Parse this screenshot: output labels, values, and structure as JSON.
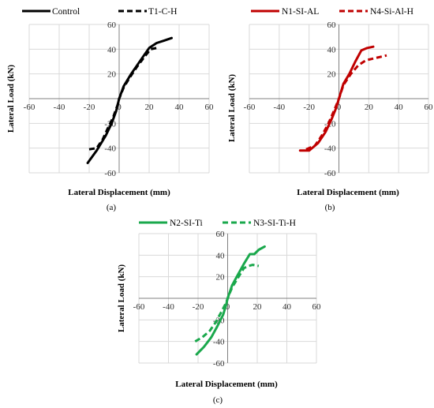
{
  "chart_data": [
    {
      "type": "line",
      "caption": "(a)",
      "xlabel": "Lateral Displacement (mm)",
      "ylabel": "Lateral Load (kN)",
      "xlim": [
        -60,
        60
      ],
      "ylim": [
        -60,
        60
      ],
      "xticks": [
        -60,
        -40,
        -20,
        0,
        20,
        40,
        60
      ],
      "yticks": [
        -60,
        -40,
        -20,
        0,
        20,
        40,
        60
      ],
      "ytick_labels": [
        "-60",
        "-40",
        "-20",
        "",
        "20",
        "40",
        "60"
      ],
      "grid": true,
      "legend_position": "top",
      "series": [
        {
          "name": "Control",
          "style": "solid",
          "color": "#000000",
          "x": [
            -21,
            -15,
            -9,
            -5,
            -2,
            0,
            3,
            8,
            12,
            16,
            20,
            25,
            30,
            35
          ],
          "y": [
            -52,
            -42,
            -30,
            -20,
            -10,
            0,
            10,
            20,
            27,
            34,
            41,
            45,
            47,
            49
          ]
        },
        {
          "name": "T1-C-H",
          "style": "dashed",
          "color": "#000000",
          "x": [
            -20,
            -15,
            -11,
            -8,
            -4,
            -1,
            0,
            3,
            7,
            12,
            17,
            21,
            25
          ],
          "y": [
            -41,
            -40,
            -33,
            -25,
            -15,
            -5,
            0,
            9,
            17,
            26,
            34,
            40,
            41
          ]
        }
      ]
    },
    {
      "type": "line",
      "caption": "(b)",
      "xlabel": "Lateral Displacement (mm)",
      "ylabel": "Lateral Load (kN)",
      "xlim": [
        -60,
        60
      ],
      "ylim": [
        -60,
        60
      ],
      "xticks": [
        -60,
        -40,
        -20,
        0,
        20,
        40,
        60
      ],
      "yticks": [
        -60,
        -40,
        -20,
        0,
        20,
        40,
        60
      ],
      "ytick_labels": [
        "-60",
        "-40",
        "-20",
        "",
        "20",
        "40",
        "60"
      ],
      "grid": true,
      "legend_position": "top",
      "series": [
        {
          "name": "N1-SI-AL",
          "style": "solid",
          "color": "#c00000",
          "x": [
            -26,
            -20,
            -14,
            -9,
            -5,
            -2,
            0,
            3,
            7,
            11,
            15,
            19,
            23
          ],
          "y": [
            -42,
            -42,
            -36,
            -27,
            -17,
            -8,
            0,
            12,
            20,
            30,
            39,
            41,
            42
          ]
        },
        {
          "name": "N4-Si-Al-H",
          "style": "dashed",
          "color": "#c00000",
          "x": [
            -22,
            -16,
            -11,
            -7,
            -3,
            0,
            3,
            8,
            13,
            18,
            25,
            32
          ],
          "y": [
            -41,
            -38,
            -29,
            -20,
            -9,
            0,
            11,
            20,
            27,
            31,
            33,
            35
          ]
        }
      ]
    },
    {
      "type": "line",
      "caption": "(c)",
      "xlabel": "Lateral Displacement (mm)",
      "ylabel": "Lateral Load (kN)",
      "xlim": [
        -60,
        60
      ],
      "ylim": [
        -60,
        60
      ],
      "xticks": [
        -60,
        -40,
        -20,
        0,
        20,
        40,
        60
      ],
      "yticks": [
        -60,
        -40,
        -20,
        0,
        20,
        40,
        60
      ],
      "ytick_labels": [
        "-60",
        "-40",
        "-20",
        "",
        "20",
        "40",
        "60"
      ],
      "grid": true,
      "legend_position": "top",
      "series": [
        {
          "name": "N2-SI-Ti",
          "style": "solid",
          "color": "#1aa84c",
          "x": [
            -21,
            -16,
            -11,
            -7,
            -3,
            -1,
            0,
            3,
            7,
            11,
            15,
            18,
            21,
            25
          ],
          "y": [
            -52,
            -45,
            -36,
            -26,
            -15,
            -6,
            0,
            12,
            22,
            32,
            41,
            41,
            45,
            48
          ]
        },
        {
          "name": "N3-SI-Ti-H",
          "style": "dashed",
          "color": "#1aa84c",
          "x": [
            -22,
            -17,
            -12,
            -8,
            -4,
            -1,
            0,
            3,
            7,
            11,
            14,
            17,
            21
          ],
          "y": [
            -40,
            -36,
            -30,
            -22,
            -12,
            -4,
            0,
            10,
            19,
            28,
            30,
            31,
            30
          ]
        }
      ]
    }
  ]
}
